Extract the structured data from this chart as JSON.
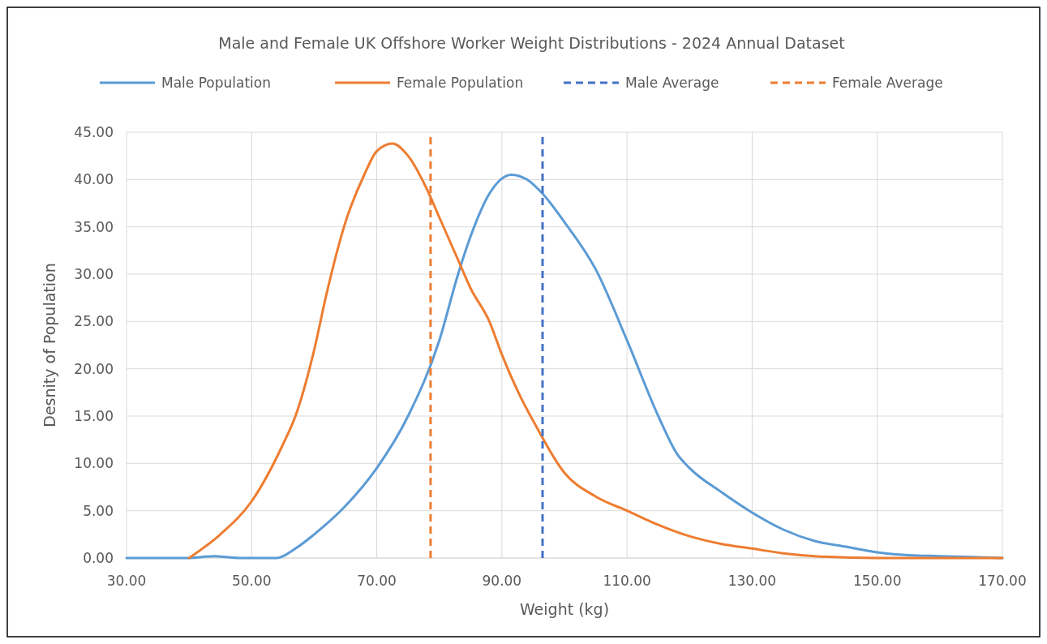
{
  "chart_data": {
    "type": "line",
    "title": "Male and Female UK Offshore Worker Weight Distributions - 2024 Annual Dataset",
    "xlabel": "Weight (kg)",
    "ylabel": "Desnity of Population",
    "xlim": [
      30,
      170
    ],
    "xticks": [
      {
        "value": 30,
        "label": "30.00"
      },
      {
        "value": 50,
        "label": "50.00"
      },
      {
        "value": 70,
        "label": "70.00"
      },
      {
        "value": 90,
        "label": "90.00"
      },
      {
        "value": 110,
        "label": "110.00"
      },
      {
        "value": 130,
        "label": "130.00"
      },
      {
        "value": 150,
        "label": "150.00"
      },
      {
        "value": 170,
        "label": "170.00"
      }
    ],
    "ylim": [
      0,
      45
    ],
    "yticks": [
      {
        "value": 0,
        "label": "0.00"
      },
      {
        "value": 5,
        "label": "5.00"
      },
      {
        "value": 10,
        "label": "10.00"
      },
      {
        "value": 15,
        "label": "15.00"
      },
      {
        "value": 20,
        "label": "20.00"
      },
      {
        "value": 25,
        "label": "25.00"
      },
      {
        "value": 30,
        "label": "30.00"
      },
      {
        "value": 35,
        "label": "35.00"
      },
      {
        "value": 40,
        "label": "40.00"
      },
      {
        "value": 45,
        "label": "45.00"
      }
    ],
    "grid": true,
    "legend": "top",
    "series": [
      {
        "name": "Male Population",
        "color": "#5b9bd5",
        "line_style": "solid",
        "x": [
          30,
          40,
          44,
          48,
          54,
          57,
          60,
          65,
          70,
          75,
          80,
          83,
          85,
          88,
          91.5,
          94,
          96.5,
          100,
          105,
          110,
          115,
          118,
          120,
          125,
          130,
          135,
          140,
          145,
          150,
          155,
          160,
          170
        ],
        "values": [
          0,
          0,
          0.2,
          0,
          0,
          1,
          2.5,
          5.5,
          9.5,
          15,
          23,
          30,
          34,
          38.5,
          40.5,
          40,
          38.5,
          35.5,
          30.5,
          23,
          15,
          11,
          9.5,
          7,
          4.8,
          3,
          1.8,
          1.2,
          0.6,
          0.3,
          0.2,
          0
        ]
      },
      {
        "name": "Female Population",
        "color": "#ed7d31",
        "line_style": "solid",
        "x": [
          40,
          45,
          50,
          55,
          57,
          60,
          62,
          65,
          68,
          70,
          72.5,
          75,
          78,
          80,
          83,
          85,
          88,
          90,
          93,
          95,
          100,
          105,
          110,
          115,
          120,
          125,
          130,
          135,
          140,
          150,
          170
        ],
        "values": [
          0,
          2.5,
          6,
          12,
          15,
          22,
          28,
          35.5,
          40.5,
          43,
          43.8,
          42.5,
          39,
          36,
          31.5,
          28.5,
          25,
          21.5,
          17,
          14.5,
          9,
          6.5,
          5,
          3.5,
          2.3,
          1.5,
          1,
          0.5,
          0.2,
          0,
          0
        ]
      },
      {
        "name": "Male Average",
        "color": "#4472c4",
        "line_style": "dashed",
        "x": [
          96.5,
          96.5
        ],
        "values": [
          0,
          45
        ]
      },
      {
        "name": "Female Average",
        "color": "#ed7d31",
        "line_style": "dashed",
        "x": [
          78.6,
          78.6
        ],
        "values": [
          0,
          45
        ]
      }
    ]
  }
}
